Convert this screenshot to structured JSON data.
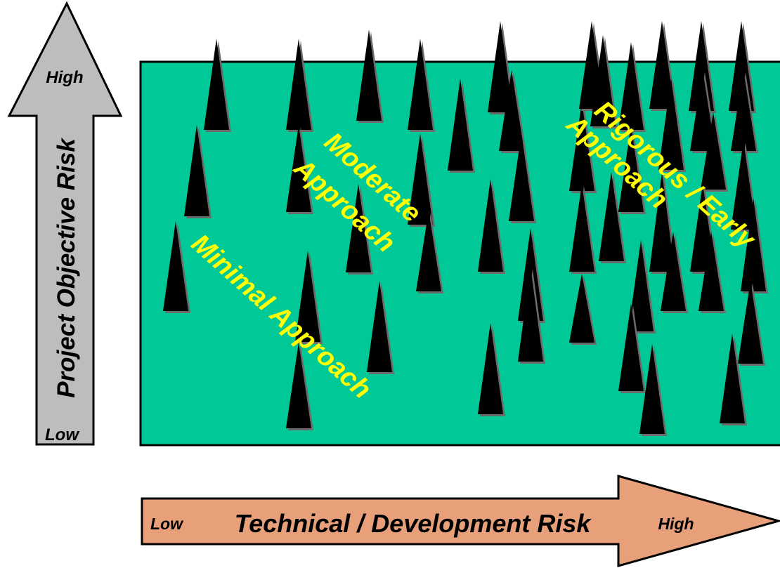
{
  "y_axis": {
    "title": "Project Objective Risk",
    "high_label": "High",
    "low_label": "Low",
    "fill_color": "#bdbdbd"
  },
  "x_axis": {
    "title": "Technical / Development Risk",
    "low_label": "Low",
    "high_label": "High",
    "fill_color": "#e8a07a"
  },
  "field": {
    "fill_color": "#00c896",
    "spike_color": "#000000"
  },
  "regions": {
    "minimal": "Minimal Approach",
    "moderate_line1": "Moderate",
    "moderate_line2": "Approach",
    "rigorous_line1": "Rigorous / Early",
    "rigorous_line2": "Approach",
    "text_color": "#ffff00"
  }
}
